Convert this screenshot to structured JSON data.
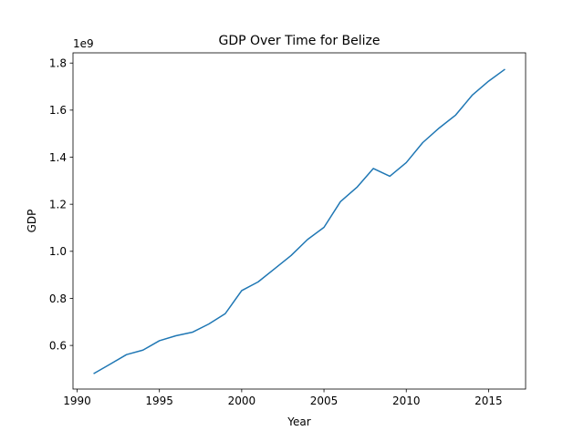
{
  "chart_data": {
    "type": "line",
    "title": "GDP Over Time for Belize",
    "xlabel": "Year",
    "ylabel": "GDP",
    "y_scale_label": "1e9",
    "xlim": [
      1989.75,
      2017.25
    ],
    "ylim": [
      0.4146,
      1.8434
    ],
    "x_ticks": [
      1990,
      1995,
      2000,
      2005,
      2010,
      2015
    ],
    "x_tick_labels": [
      "1990",
      "1995",
      "2000",
      "2005",
      "2010",
      "2015"
    ],
    "y_ticks": [
      0.6,
      0.8,
      1.0,
      1.2,
      1.4,
      1.6,
      1.8
    ],
    "y_tick_labels": [
      "0.6",
      "0.8",
      "1.0",
      "1.2",
      "1.4",
      "1.6",
      "1.8"
    ],
    "grid": false,
    "line_color": "#1f77b4",
    "series": [
      {
        "x": [
          1991,
          1992,
          1993,
          1994,
          1995,
          1996,
          1997,
          1998,
          1999,
          2000,
          2001,
          2002,
          2003,
          2004,
          2005,
          2006,
          2007,
          2008,
          2009,
          2010,
          2011,
          2012,
          2013,
          2014,
          2015,
          2016
        ],
        "y": [
          0.48,
          0.52,
          0.561,
          0.58,
          0.62,
          0.641,
          0.656,
          0.691,
          0.735,
          0.833,
          0.87,
          0.926,
          0.982,
          1.05,
          1.102,
          1.211,
          1.272,
          1.352,
          1.319,
          1.377,
          1.462,
          1.524,
          1.579,
          1.663,
          1.723,
          1.774
        ]
      }
    ]
  }
}
